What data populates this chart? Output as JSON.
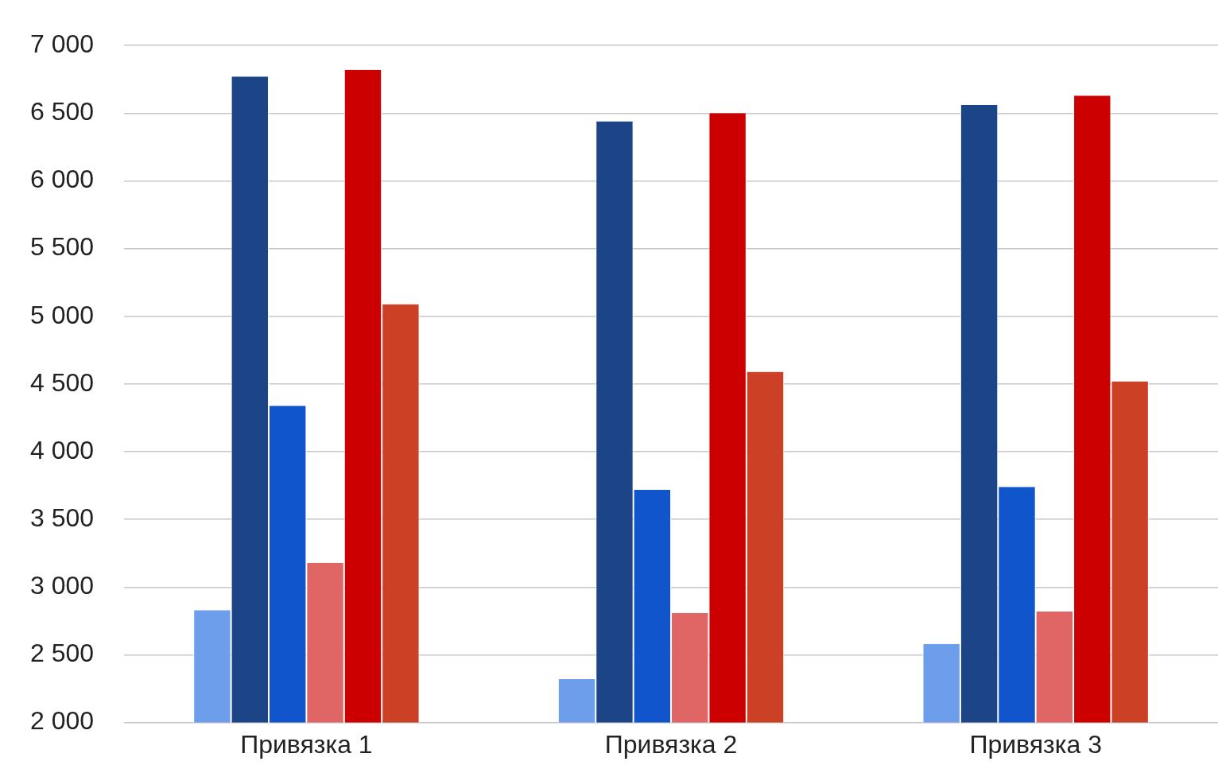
{
  "chart_data": {
    "type": "bar",
    "categories": [
      "Привязка 1",
      "Привязка 2",
      "Привязка 3"
    ],
    "series": [
      {
        "color": "#6d9eeb",
        "values": [
          2830,
          2320,
          2580
        ]
      },
      {
        "color": "#1c4587",
        "values": [
          6770,
          6440,
          6560
        ]
      },
      {
        "color": "#1155cc",
        "values": [
          4340,
          3720,
          3740
        ]
      },
      {
        "color": "#e06666",
        "values": [
          3180,
          2810,
          2820
        ]
      },
      {
        "color": "#cc0000",
        "values": [
          6820,
          6500,
          6630
        ]
      },
      {
        "color": "#cc4125",
        "values": [
          5090,
          4590,
          4520
        ]
      }
    ],
    "ylim": [
      2000,
      7000
    ],
    "yticks": [
      {
        "value": 2000,
        "label": "2 000"
      },
      {
        "value": 2500,
        "label": "2 500"
      },
      {
        "value": 3000,
        "label": "3 000"
      },
      {
        "value": 3500,
        "label": "3 500"
      },
      {
        "value": 4000,
        "label": "4 000"
      },
      {
        "value": 4500,
        "label": "4 500"
      },
      {
        "value": 5000,
        "label": "5 000"
      },
      {
        "value": 5500,
        "label": "5 500"
      },
      {
        "value": 6000,
        "label": "6 000"
      },
      {
        "value": 6500,
        "label": "6 500"
      },
      {
        "value": 7000,
        "label": "7 000"
      }
    ],
    "grid": "y",
    "legend": false
  }
}
